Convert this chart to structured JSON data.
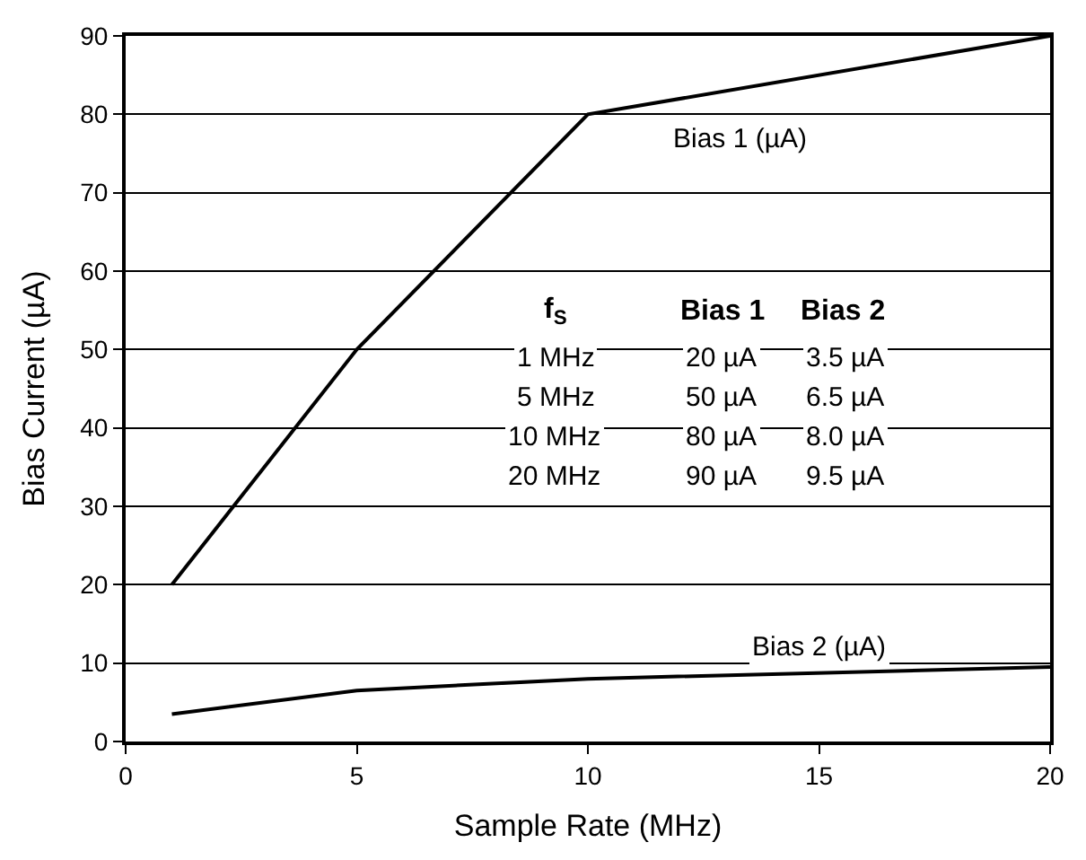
{
  "chart_data": {
    "type": "line",
    "xlabel": "Sample Rate (MHz)",
    "ylabel": "Bias Current (µA)",
    "series": [
      {
        "name": "Bias 1 (µA)",
        "color": "#000000",
        "x": [
          1,
          5,
          10,
          20
        ],
        "values": [
          20,
          50,
          80,
          90
        ]
      },
      {
        "name": "Bias 2 (µA)",
        "color": "#000000",
        "x": [
          1,
          5,
          10,
          20
        ],
        "values": [
          3.5,
          6.5,
          8.0,
          9.5
        ]
      }
    ],
    "xlim": [
      0,
      20
    ],
    "ylim": [
      0,
      90
    ],
    "xticks": [
      0,
      5,
      10,
      15,
      20
    ],
    "yticks": [
      0,
      10,
      20,
      30,
      40,
      50,
      60,
      70,
      80,
      90
    ],
    "grid": "y",
    "legend": false,
    "marker": "none",
    "line_style": "solid",
    "annotations": [
      "f$_{S}$",
      "Bias 1",
      "Bias 2",
      "1 MHz",
      "20 µA",
      "3.5 µA",
      "5 MHz",
      "50 µA",
      "6.5 µA",
      "10 MHz",
      "80 µA",
      "8.0 µA",
      "20 MHz",
      "90 µA",
      "9.5 µA"
    ]
  }
}
